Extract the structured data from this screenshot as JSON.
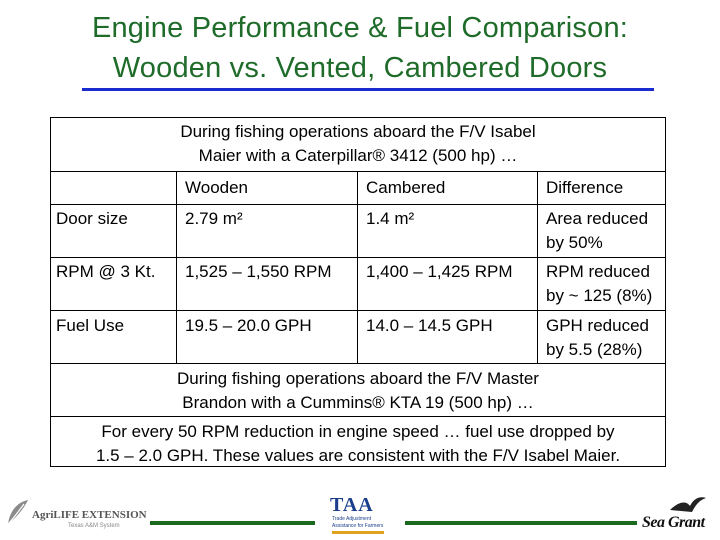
{
  "slide": {
    "title_line1": "Engine Performance & Fuel Comparison:",
    "title_line2": "Wooden vs. Vented, Cambered Doors"
  },
  "table": {
    "intro_line1": "During fishing operations aboard the F/V Isabel",
    "intro_line2": "Maier with a Caterpillar® 3412 (500 hp) …",
    "headers": [
      "",
      "Wooden",
      "Cambered",
      "Difference"
    ],
    "rows": [
      {
        "label": "Door size",
        "wooden": "2.79 m²",
        "cambered": "1.4 m²",
        "diff_line1": "Area reduced",
        "diff_line2": "by 50%"
      },
      {
        "label": "RPM @ 3 Kt.",
        "wooden": "1,525 – 1,550 RPM",
        "cambered": "1,400 – 1,425 RPM",
        "diff_line1": "RPM reduced",
        "diff_line2": "by ~ 125 (8%)"
      },
      {
        "label": "Fuel Use",
        "wooden": "19.5 –  20.0 GPH",
        "cambered": "14.0 – 14.5 GPH",
        "diff_line1": "GPH reduced",
        "diff_line2": "by 5.5 (28%)"
      }
    ],
    "second_intro_line1": "During fishing operations aboard the F/V Master",
    "second_intro_line2": "Brandon with a Cummins® KTA 19 (500 hp) …",
    "summary_line1": "For every 50 RPM reduction in engine speed … fuel use dropped by",
    "summary_line2": "1.5 – 2.0 GPH. These values are consistent with the F/V Isabel Maier."
  },
  "logos": {
    "agrilife_text": "AgriLIFE EXTENSION",
    "agrilife_sub": "Texas A&M System",
    "taa_text": "TAA",
    "taa_sub1": "Trade Adjustment",
    "taa_sub2": "Assistance for Farmers",
    "seagrant_text": "Sea Grant"
  }
}
